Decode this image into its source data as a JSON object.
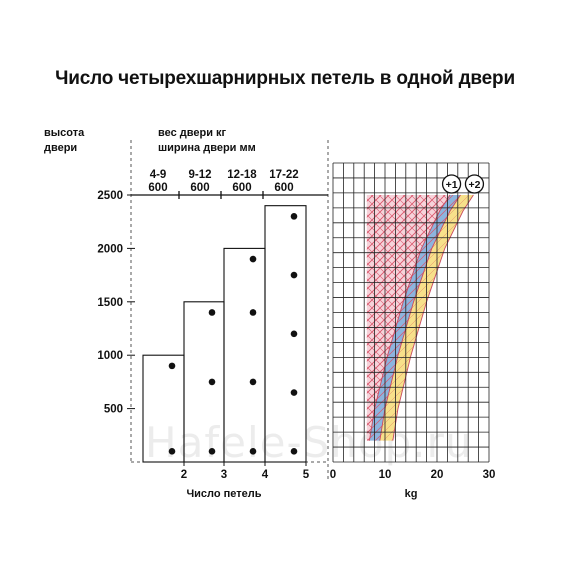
{
  "title": "Число четырехшарнирных петель в одной двери",
  "watermark": "Hafele-Shop.ru",
  "chart_data": [
    {
      "type": "bar",
      "ylabel_line1": "высота",
      "ylabel_line2": "двери",
      "header_line1": "вес двери кг",
      "header_line2": "ширина двери мм",
      "xlabel": "Число петель",
      "y_ticks": [
        500,
        1000,
        1500,
        2000,
        2500
      ],
      "ylim": [
        0,
        2500
      ],
      "x_ticks": [
        2,
        3,
        4,
        5
      ],
      "groups": [
        {
          "weight": "4-9",
          "width": "600"
        },
        {
          "weight": "9-12",
          "width": "600"
        },
        {
          "weight": "12-18",
          "width": "600"
        },
        {
          "weight": "17-22",
          "width": "600"
        }
      ],
      "bars": [
        {
          "hinges": 2,
          "door_height": 1000
        },
        {
          "hinges": 3,
          "door_height": 1500
        },
        {
          "hinges": 4,
          "door_height": 2000
        },
        {
          "hinges": 5,
          "door_height": 2400
        }
      ],
      "hinge_positions": [
        {
          "hinges": 2,
          "y": [
            100,
            900
          ]
        },
        {
          "hinges": 3,
          "y": [
            100,
            750,
            1400
          ]
        },
        {
          "hinges": 4,
          "y": [
            100,
            750,
            1400,
            1900
          ]
        },
        {
          "hinges": 5,
          "y": [
            100,
            650,
            1200,
            1750,
            2300
          ]
        }
      ]
    },
    {
      "type": "area",
      "xlabel": "kg",
      "x_ticks": [
        0,
        10,
        20,
        30
      ],
      "xlim": [
        0,
        30
      ],
      "ylim": [
        0,
        2500
      ],
      "grid": true,
      "marks": [
        "+1",
        "+2"
      ],
      "colors": {
        "blue": "#8db4de",
        "yellow": "#f7e08a",
        "red_hatch": "#d9546a",
        "pink": "#f4cfd8"
      },
      "series": [
        {
          "name": "+1",
          "band": "blue",
          "x_left": [
            7,
            8,
            10.5,
            13.5,
            17,
            20.5,
            22.5
          ],
          "x_right": [
            9,
            10,
            12.5,
            15.5,
            19,
            22.5,
            24.5
          ],
          "y": [
            200,
            500,
            1000,
            1500,
            2000,
            2350,
            2500
          ]
        },
        {
          "name": "+2",
          "band": "yellow",
          "x_left": [
            9,
            10,
            12.5,
            15.5,
            19,
            22.5,
            24.5
          ],
          "x_right": [
            11.5,
            12.5,
            15,
            18,
            21.5,
            25,
            27
          ],
          "y": [
            200,
            500,
            1000,
            1500,
            2000,
            2350,
            2500
          ]
        }
      ]
    }
  ]
}
